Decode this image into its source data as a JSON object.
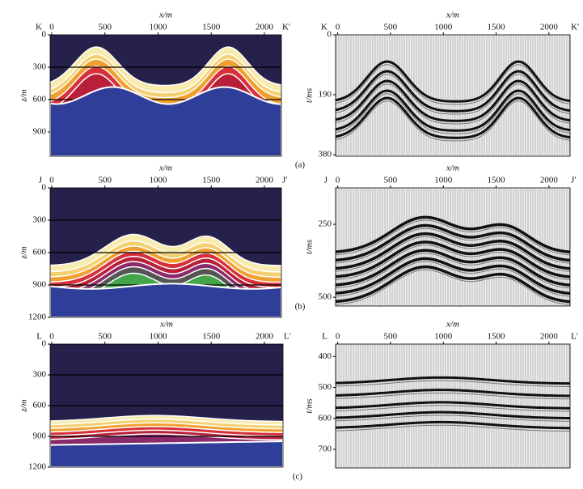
{
  "chart_data": [
    {
      "type": "image",
      "xlabel": "x/m",
      "ylabel": "z/m",
      "left_label": "K",
      "right_label": "K′",
      "xlim": [
        -15,
        2160
      ],
      "xticks": [
        0,
        500,
        1000,
        1500,
        2000
      ],
      "ylim": [
        0,
        1125
      ],
      "yticks": [
        0,
        300,
        600,
        900
      ]
    },
    {
      "type": "image",
      "xlabel": "x/m",
      "ylabel": "t/ms",
      "left_label": "K",
      "right_label": "K′",
      "xlim": [
        -20,
        2200
      ],
      "xticks": [
        0,
        500,
        1000,
        1500,
        2000
      ],
      "ylim": [
        0,
        385
      ],
      "yticks": [
        0,
        190,
        380
      ]
    },
    {
      "type": "image",
      "xlabel": "x/m",
      "ylabel": "z/m",
      "left_label": "J",
      "right_label": "J′",
      "xlim": [
        -15,
        2160
      ],
      "xticks": [
        0,
        500,
        1000,
        1500,
        2000
      ],
      "ylim": [
        0,
        1200
      ],
      "yticks": [
        0,
        300,
        600,
        900,
        1200
      ]
    },
    {
      "type": "image",
      "xlabel": "x/m",
      "ylabel": "t/ms",
      "left_label": "J",
      "right_label": "J′",
      "xlim": [
        -20,
        2200
      ],
      "xticks": [
        0,
        500,
        1000,
        1500,
        2000
      ],
      "ylim": [
        125,
        530
      ],
      "yticks": [
        250,
        500
      ]
    },
    {
      "type": "image",
      "xlabel": "x/m",
      "ylabel": "z/m",
      "left_label": "L",
      "right_label": "L′",
      "xlim": [
        -15,
        2175
      ],
      "xticks": [
        0,
        500,
        1000,
        1500,
        2000
      ],
      "ylim": [
        0,
        1200
      ],
      "yticks": [
        0,
        300,
        600,
        900,
        1200
      ]
    },
    {
      "type": "image",
      "xlabel": "x/m",
      "ylabel": "t/ms",
      "left_label": "L",
      "right_label": "L′",
      "xlim": [
        -20,
        2200
      ],
      "xticks": [
        0,
        500,
        1000,
        1500,
        2000
      ],
      "ylim": [
        360,
        760
      ],
      "yticks": [
        400,
        500,
        600,
        700
      ]
    }
  ],
  "captions": [
    "(a)",
    "(b)",
    "(c)"
  ]
}
